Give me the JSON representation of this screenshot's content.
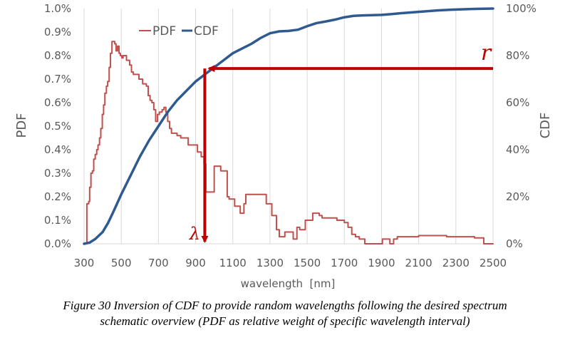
{
  "chart_data": {
    "type": "line",
    "title": "",
    "xlabel": "wavelength  [nm]",
    "ylabel_left": "PDF",
    "ylabel_right": "CDF",
    "xlim": [
      300,
      2500
    ],
    "ylim_left": [
      0,
      1.0
    ],
    "ylim_right": [
      0,
      100
    ],
    "x_ticks": [
      300,
      500,
      700,
      900,
      1100,
      1300,
      1500,
      1700,
      1900,
      2100,
      2300,
      2500
    ],
    "y_left_ticks": [
      0,
      0.1,
      0.2,
      0.3,
      0.4,
      0.5,
      0.6,
      0.7,
      0.8,
      0.9,
      1.0
    ],
    "y_left_tick_labels": [
      "0.0%",
      "0.1%",
      "0.2%",
      "0.3%",
      "0.4%",
      "0.5%",
      "0.6%",
      "0.7%",
      "0.8%",
      "0.9%",
      "1.0%"
    ],
    "y_right_ticks": [
      0,
      20,
      40,
      60,
      80,
      100
    ],
    "y_right_tick_labels": [
      "0%",
      "20%",
      "40%",
      "60%",
      "80%",
      "100%"
    ],
    "grid": "vertical",
    "legend": {
      "position": "top-center",
      "entries": [
        "PDF",
        "CDF"
      ]
    },
    "series": [
      {
        "name": "PDF",
        "axis": "left",
        "color": "#c0504d",
        "step": true,
        "points": [
          [
            300,
            0.0
          ],
          [
            310,
            0.0
          ],
          [
            315,
            0.17
          ],
          [
            325,
            0.18
          ],
          [
            330,
            0.24
          ],
          [
            337,
            0.3
          ],
          [
            345,
            0.31
          ],
          [
            352,
            0.36
          ],
          [
            360,
            0.38
          ],
          [
            368,
            0.4
          ],
          [
            375,
            0.42
          ],
          [
            383,
            0.45
          ],
          [
            390,
            0.49
          ],
          [
            398,
            0.55
          ],
          [
            405,
            0.59
          ],
          [
            412,
            0.64
          ],
          [
            420,
            0.67
          ],
          [
            427,
            0.69
          ],
          [
            435,
            0.75
          ],
          [
            442,
            0.81
          ],
          [
            450,
            0.86
          ],
          [
            458,
            0.86
          ],
          [
            465,
            0.85
          ],
          [
            472,
            0.82
          ],
          [
            480,
            0.84
          ],
          [
            488,
            0.81
          ],
          [
            495,
            0.8
          ],
          [
            503,
            0.79
          ],
          [
            510,
            0.8
          ],
          [
            520,
            0.8
          ],
          [
            528,
            0.78
          ],
          [
            535,
            0.78
          ],
          [
            545,
            0.76
          ],
          [
            555,
            0.73
          ],
          [
            565,
            0.72
          ],
          [
            575,
            0.72
          ],
          [
            585,
            0.72
          ],
          [
            595,
            0.7
          ],
          [
            605,
            0.7
          ],
          [
            615,
            0.68
          ],
          [
            625,
            0.68
          ],
          [
            635,
            0.67
          ],
          [
            645,
            0.63
          ],
          [
            655,
            0.61
          ],
          [
            665,
            0.6
          ],
          [
            675,
            0.57
          ],
          [
            685,
            0.52
          ],
          [
            695,
            0.55
          ],
          [
            705,
            0.56
          ],
          [
            715,
            0.56
          ],
          [
            720,
            0.57
          ],
          [
            730,
            0.58
          ],
          [
            740,
            0.56
          ],
          [
            750,
            0.52
          ],
          [
            760,
            0.49
          ],
          [
            770,
            0.47
          ],
          [
            780,
            0.47
          ],
          [
            790,
            0.47
          ],
          [
            800,
            0.46
          ],
          [
            810,
            0.46
          ],
          [
            820,
            0.45
          ],
          [
            830,
            0.45
          ],
          [
            850,
            0.45
          ],
          [
            860,
            0.42
          ],
          [
            870,
            0.42
          ],
          [
            890,
            0.42
          ],
          [
            910,
            0.39
          ],
          [
            930,
            0.37
          ],
          [
            945,
            0.34
          ],
          [
            955,
            0.22
          ],
          [
            970,
            0.22
          ],
          [
            985,
            0.22
          ],
          [
            1000,
            0.33
          ],
          [
            1020,
            0.33
          ],
          [
            1035,
            0.31
          ],
          [
            1055,
            0.31
          ],
          [
            1070,
            0.2
          ],
          [
            1080,
            0.19
          ],
          [
            1090,
            0.19
          ],
          [
            1100,
            0.19
          ],
          [
            1110,
            0.16
          ],
          [
            1125,
            0.16
          ],
          [
            1140,
            0.13
          ],
          [
            1160,
            0.17
          ],
          [
            1170,
            0.21
          ],
          [
            1190,
            0.21
          ],
          [
            1210,
            0.21
          ],
          [
            1240,
            0.21
          ],
          [
            1260,
            0.21
          ],
          [
            1280,
            0.17
          ],
          [
            1295,
            0.17
          ],
          [
            1310,
            0.12
          ],
          [
            1320,
            0.12
          ],
          [
            1335,
            0.06
          ],
          [
            1350,
            0.03
          ],
          [
            1360,
            0.03
          ],
          [
            1370,
            0.03
          ],
          [
            1380,
            0.05
          ],
          [
            1400,
            0.05
          ],
          [
            1425,
            0.02
          ],
          [
            1435,
            0.02
          ],
          [
            1445,
            0.07
          ],
          [
            1460,
            0.06
          ],
          [
            1475,
            0.06
          ],
          [
            1490,
            0.1
          ],
          [
            1500,
            0.1
          ],
          [
            1510,
            0.1
          ],
          [
            1530,
            0.13
          ],
          [
            1550,
            0.13
          ],
          [
            1565,
            0.12
          ],
          [
            1580,
            0.11
          ],
          [
            1600,
            0.11
          ],
          [
            1620,
            0.11
          ],
          [
            1640,
            0.11
          ],
          [
            1660,
            0.1
          ],
          [
            1680,
            0.1
          ],
          [
            1700,
            0.09
          ],
          [
            1720,
            0.07
          ],
          [
            1740,
            0.04
          ],
          [
            1760,
            0.03
          ],
          [
            1780,
            0.02
          ],
          [
            1800,
            0.02
          ],
          [
            1810,
            0.0
          ],
          [
            1830,
            0.0
          ],
          [
            1850,
            0.0
          ],
          [
            1870,
            0.0
          ],
          [
            1890,
            0.0
          ],
          [
            1905,
            0.02
          ],
          [
            1925,
            0.02
          ],
          [
            1945,
            0.0
          ],
          [
            1965,
            0.02
          ],
          [
            1985,
            0.03
          ],
          [
            2000,
            0.03
          ],
          [
            2050,
            0.03
          ],
          [
            2100,
            0.035
          ],
          [
            2200,
            0.035
          ],
          [
            2250,
            0.03
          ],
          [
            2320,
            0.03
          ],
          [
            2380,
            0.03
          ],
          [
            2400,
            0.025
          ],
          [
            2440,
            0.025
          ],
          [
            2450,
            0.0
          ],
          [
            2500,
            0.0
          ]
        ]
      },
      {
        "name": "CDF",
        "axis": "right",
        "color": "#2e5a8f",
        "step": false,
        "points": [
          [
            300,
            0.0
          ],
          [
            330,
            0.5
          ],
          [
            360,
            2
          ],
          [
            400,
            5
          ],
          [
            430,
            9
          ],
          [
            460,
            14
          ],
          [
            500,
            21
          ],
          [
            550,
            29
          ],
          [
            600,
            37
          ],
          [
            650,
            44
          ],
          [
            700,
            50
          ],
          [
            750,
            56
          ],
          [
            800,
            61
          ],
          [
            850,
            65
          ],
          [
            900,
            69
          ],
          [
            950,
            72
          ],
          [
            1000,
            75
          ],
          [
            1050,
            78
          ],
          [
            1100,
            81
          ],
          [
            1150,
            83
          ],
          [
            1200,
            85
          ],
          [
            1250,
            87.5
          ],
          [
            1300,
            89.5
          ],
          [
            1350,
            90.3
          ],
          [
            1400,
            90.5
          ],
          [
            1450,
            91
          ],
          [
            1500,
            92.5
          ],
          [
            1550,
            93.8
          ],
          [
            1600,
            94.5
          ],
          [
            1650,
            95.3
          ],
          [
            1700,
            96.3
          ],
          [
            1750,
            96.9
          ],
          [
            1800,
            97.1
          ],
          [
            1850,
            97.2
          ],
          [
            1900,
            97.3
          ],
          [
            1950,
            97.6
          ],
          [
            2000,
            98
          ],
          [
            2100,
            98.6
          ],
          [
            2200,
            99.2
          ],
          [
            2300,
            99.6
          ],
          [
            2400,
            99.85
          ],
          [
            2500,
            100
          ]
        ]
      }
    ],
    "annotations": [
      {
        "text": "r",
        "meaning": "random number on CDF axis",
        "at_cdf_percent": 74.5
      },
      {
        "text": "λ",
        "meaning": "resulting wavelength",
        "at_wavelength_nm": 980
      }
    ]
  },
  "caption": {
    "line1": "Figure 30 Inversion of CDF to provide random wavelengths following the desired spectrum",
    "line2": "schematic overview (PDF as relative weight of specific wavelength interval)"
  },
  "colors": {
    "pdf": "#c0504d",
    "cdf": "#2e5a8f",
    "arrow": "#c00000",
    "grid": "#d9d9d9",
    "tick_text": "#595959"
  }
}
